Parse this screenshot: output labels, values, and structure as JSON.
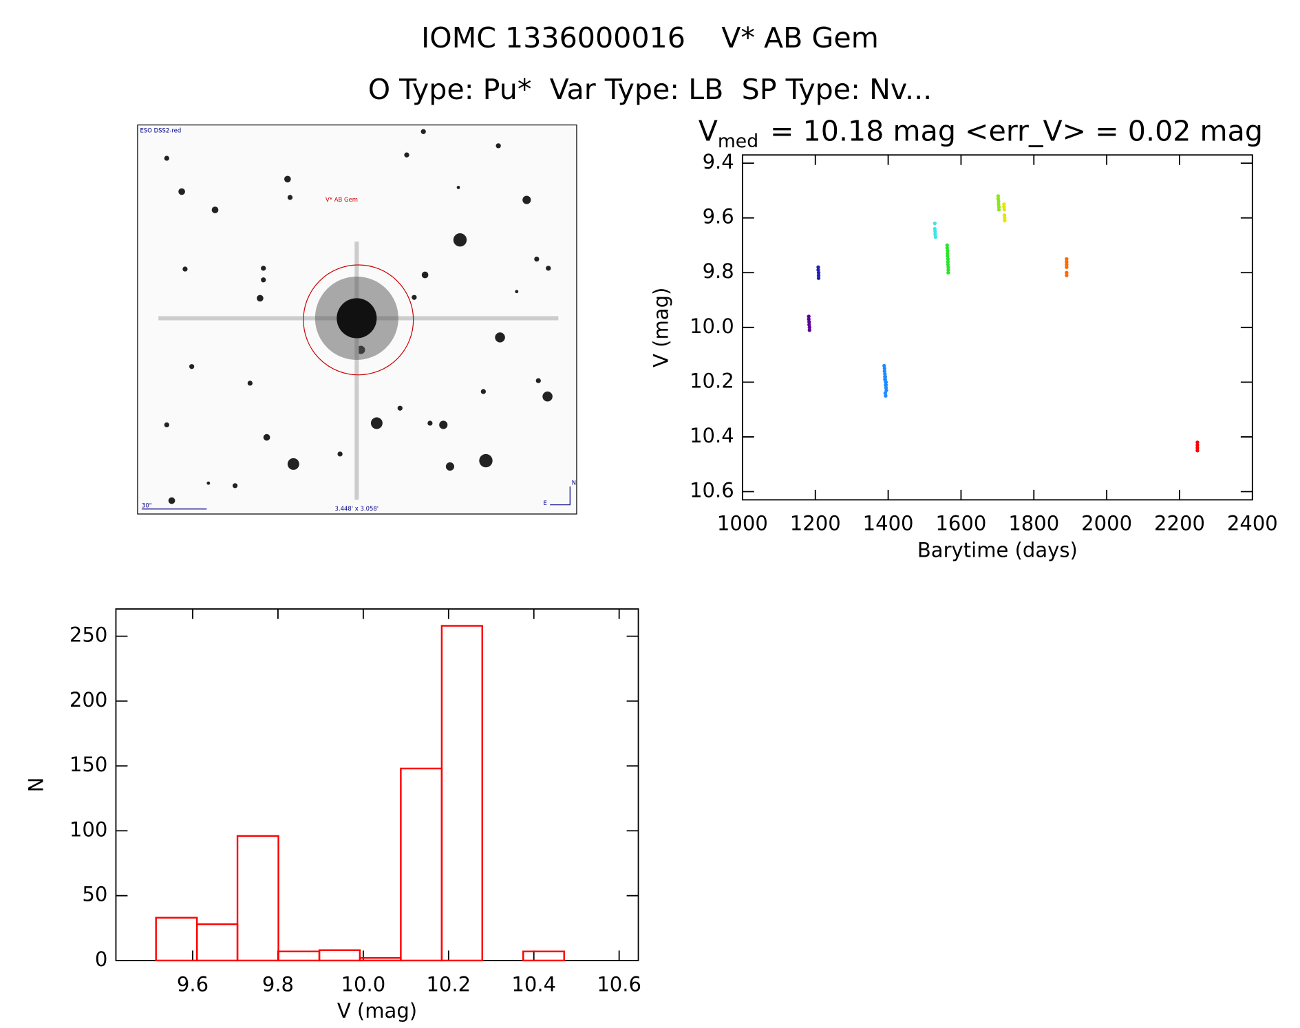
{
  "header": {
    "title": "IOMC 1336000016    V* AB Gem",
    "subtitle": "O Type: Pu*  Var Type: LB  SP Type: Nv..."
  },
  "image": {
    "survey": "ESO DSS2-red",
    "target": "V* AB Gem",
    "scale": "30\"",
    "field": "3.448' x 3.058'",
    "east": "E",
    "north": "N"
  },
  "chart_data": [
    {
      "type": "scatter",
      "title_symbol": "V",
      "title_subscript": "med",
      "title": "= 10.18 mag <err_V> = 0.02 mag",
      "x_label": "Barytime (days)",
      "y_label": "V (mag)",
      "xlim": [
        1000,
        2400
      ],
      "xticks": [
        1000,
        1200,
        1400,
        1600,
        1800,
        2000,
        2200,
        2400
      ],
      "ylim": [
        10.63,
        9.37
      ],
      "yticks": [
        9.4,
        9.6,
        9.8,
        {
          "value": 10,
          "label": "10.0"
        },
        10.2,
        10.4,
        10.6
      ],
      "series": [
        {
          "color": "#5a0096",
          "x": [
            1182,
            1182,
            1183,
            1183,
            1184,
            1184
          ],
          "values": [
            9.96,
            9.97,
            9.98,
            9.99,
            10.0,
            10.01
          ]
        },
        {
          "color": "#2020c0",
          "x": [
            1208,
            1208,
            1209,
            1209,
            1209
          ],
          "values": [
            9.78,
            9.79,
            9.8,
            9.81,
            9.82
          ]
        },
        {
          "color": "#1e8cff",
          "x": [
            1389,
            1390,
            1390,
            1391,
            1391,
            1392,
            1392,
            1393,
            1393,
            1394,
            1394,
            1395,
            1392,
            1391,
            1393,
            1394
          ],
          "values": [
            10.14,
            10.15,
            10.16,
            10.17,
            10.18,
            10.18,
            10.19,
            10.2,
            10.21,
            10.21,
            10.22,
            10.23,
            10.24,
            10.19,
            10.25,
            10.2
          ]
        },
        {
          "color": "#3ce6e6",
          "x": [
            1528,
            1528,
            1529,
            1529,
            1530
          ],
          "values": [
            9.62,
            9.64,
            9.65,
            9.66,
            9.67
          ]
        },
        {
          "color": "#28e628",
          "x": [
            1562,
            1562,
            1563,
            1563,
            1563,
            1564,
            1564,
            1564,
            1565,
            1565,
            1565
          ],
          "values": [
            9.7,
            9.71,
            9.72,
            9.73,
            9.74,
            9.75,
            9.76,
            9.77,
            9.78,
            9.79,
            9.8
          ]
        },
        {
          "color": "#8ce61e",
          "x": [
            1702,
            1702,
            1703,
            1703,
            1704,
            1704
          ],
          "values": [
            9.52,
            9.53,
            9.54,
            9.55,
            9.56,
            9.57
          ]
        },
        {
          "color": "#e6e600",
          "x": [
            1718,
            1718,
            1719,
            1719,
            1720,
            1720
          ],
          "values": [
            9.55,
            9.56,
            9.57,
            9.59,
            9.6,
            9.61
          ]
        },
        {
          "color": "#ff6a00",
          "x": [
            1890,
            1890,
            1890,
            1890,
            1890,
            1890
          ],
          "values": [
            9.75,
            9.76,
            9.77,
            9.78,
            9.8,
            9.81
          ]
        },
        {
          "color": "#ff0000",
          "x": [
            2249,
            2249,
            2249,
            2249
          ],
          "values": [
            10.42,
            10.43,
            10.44,
            10.45
          ]
        }
      ]
    },
    {
      "type": "histogram",
      "x_label": "V (mag)",
      "y_label": "N",
      "color": "#ff0000",
      "bins": [
        9.514,
        9.61,
        9.705,
        9.801,
        9.897,
        9.992,
        10.088,
        10.184,
        10.279,
        10.375,
        10.471
      ],
      "values": [
        33,
        28,
        96,
        7,
        8,
        2,
        148,
        258,
        0,
        7
      ],
      "xlim": [
        9.42,
        10.645
      ],
      "xticks": [
        9.6,
        9.8,
        {
          "value": 10,
          "label": "10.0"
        },
        10.2,
        10.4,
        10.6
      ],
      "ylim": [
        0,
        271
      ],
      "yticks": [
        0,
        50,
        100,
        150,
        200,
        250
      ]
    }
  ]
}
